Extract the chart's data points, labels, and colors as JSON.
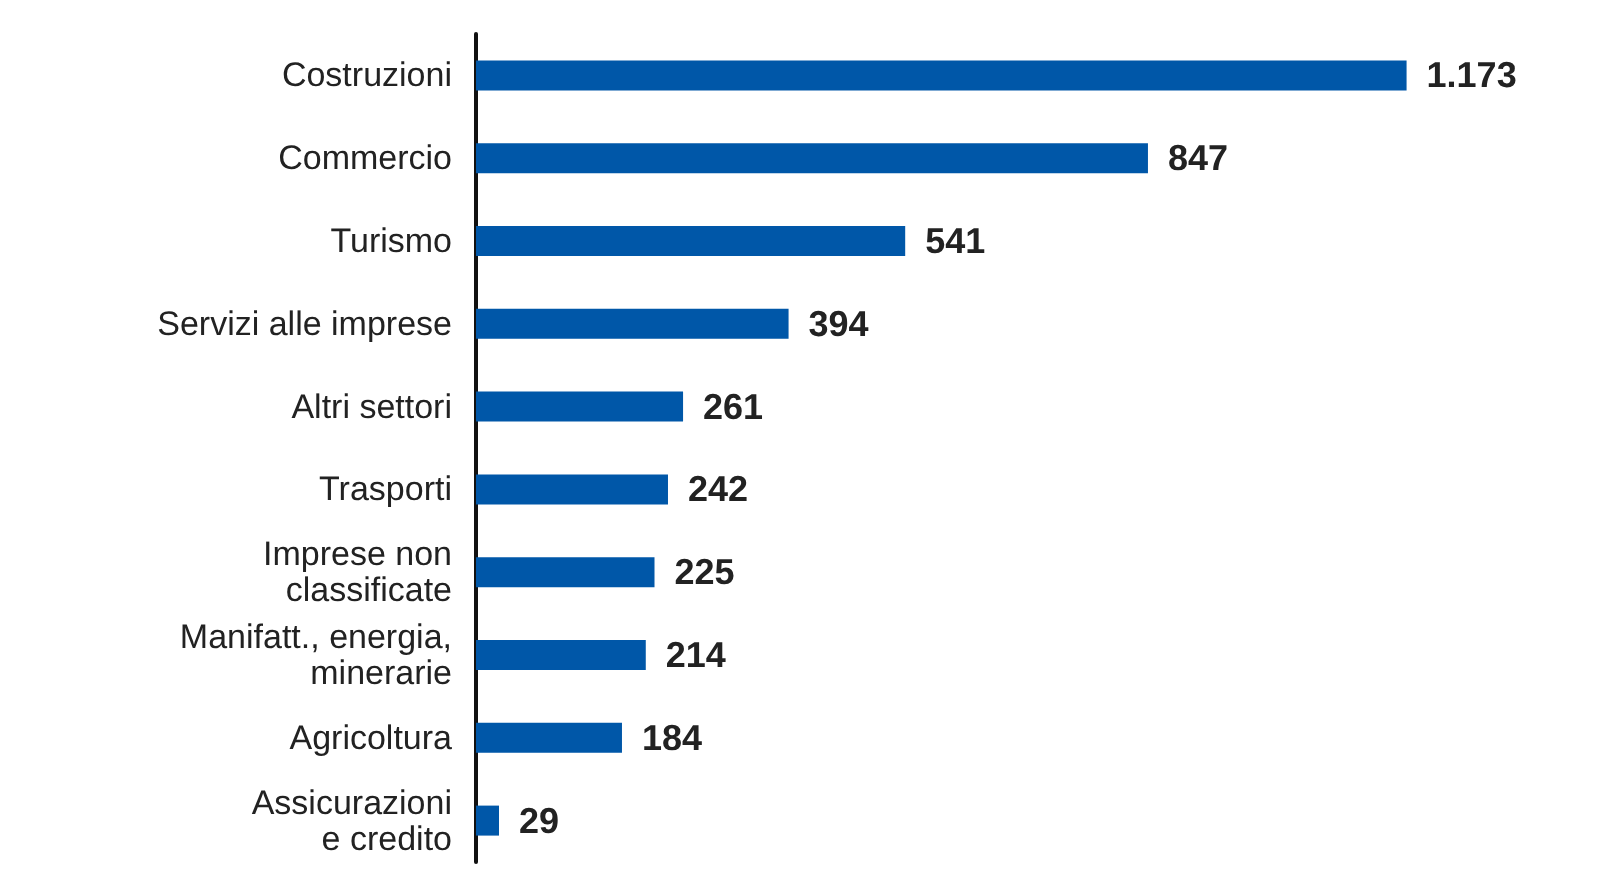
{
  "chart_data": {
    "type": "bar",
    "orientation": "horizontal",
    "categories": [
      "Costruzioni",
      "Commercio",
      "Turismo",
      "Servizi alle imprese",
      "Altri settori",
      "Trasporti",
      "Imprese non\nclassificate",
      "Manifatt., energia,\nminerarie",
      "Agricoltura",
      "Assicurazioni\ne credito"
    ],
    "values": [
      1173,
      847,
      541,
      394,
      261,
      242,
      225,
      214,
      184,
      29
    ],
    "value_labels": [
      "1.173",
      "847",
      "541",
      "394",
      "261",
      "242",
      "225",
      "214",
      "184",
      "29"
    ],
    "color": "#0057a8"
  }
}
